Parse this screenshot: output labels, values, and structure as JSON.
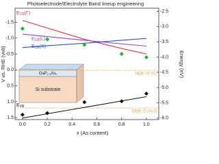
{
  "chart_data": {
    "type": "line",
    "title": "Photoelectrode/Electrolyte Band lineup engineering",
    "xlabel": "x (As content)",
    "ylabel": "V vs. RHE (volt)",
    "y2label": "Energy (eV)",
    "xlim": [
      -0.06,
      1.1
    ],
    "xticks": [
      {
        "value": 0,
        "label": "0.0"
      },
      0.2,
      0.4,
      0.6,
      0.8,
      {
        "value": 1,
        "label": "1.0"
      }
    ],
    "ylim": [
      1.56,
      -1.94
    ],
    "yticks": [
      -1.5,
      {
        "value": -1,
        "label": "-1.0"
      },
      -0.5,
      {
        "value": 0,
        "label": "0.0"
      },
      0.5,
      {
        "value": 1,
        "label": "1.0"
      },
      1.5
    ],
    "y2lim": [
      -6.05,
      -2.4
    ],
    "y2ticks": [
      -2.5,
      {
        "value": -3,
        "label": "-3.0"
      },
      -3.5,
      {
        "value": -4,
        "label": "-4.0"
      },
      -4.5,
      {
        "value": -5,
        "label": "-5.0"
      },
      -5.5,
      {
        "value": -6,
        "label": "-6.0"
      }
    ],
    "series": [
      {
        "kind": "line",
        "axis": "y2",
        "color": "#e0303a",
        "x": [
          0,
          0.2,
          0.5,
          0.8,
          1.0
        ],
        "values": [
          -2.8,
          -3.05,
          -3.42,
          -3.72,
          -3.9
        ]
      },
      {
        "kind": "line",
        "axis": "y2",
        "color": "#9b3fc9",
        "x": [
          0,
          0.2,
          0.5,
          0.8,
          1.0
        ],
        "values": [
          -3.25,
          -3.33,
          -3.45,
          -3.57,
          -3.64
        ]
      },
      {
        "kind": "line",
        "axis": "y2",
        "color": "#2a4fd6",
        "x": [
          0,
          0.2,
          0.5,
          0.8,
          1.0
        ],
        "values": [
          -3.69,
          -3.63,
          -3.55,
          -3.45,
          -3.39
        ]
      },
      {
        "kind": "line",
        "axis": "y2",
        "color": "#111111",
        "x": [
          0,
          0.2,
          0.5,
          0.8,
          1.0
        ],
        "values": [
          -6.0,
          -5.86,
          -5.65,
          -5.44,
          -5.3
        ]
      },
      {
        "kind": "scatter",
        "axis": "y2",
        "color": "#22b030",
        "x": [
          0,
          0.2,
          0.5,
          0.8,
          1.0
        ],
        "values": [
          -3.07,
          -3.42,
          -3.6,
          -3.9,
          -4.01
        ]
      },
      {
        "kind": "scatter",
        "axis": "y2",
        "color": "#111111",
        "x": [
          0,
          0.2,
          0.5,
          0.8,
          1.0
        ],
        "values": [
          -5.89,
          -5.84,
          -5.48,
          -5.45,
          -5.2
        ]
      }
    ],
    "annotations": [
      {
        "text": "E",
        "sub": "CB",
        "rest": "(Γ)",
        "color": "#e0303a"
      },
      {
        "text": "E",
        "sub": "CB",
        "rest": "(L)",
        "color": "#9b3fc9"
      },
      {
        "text": "E",
        "sub": "CB",
        "rest": "(X)",
        "color": "#2a4fd6"
      },
      {
        "text": "E",
        "sub": "VB",
        "rest": "",
        "color": "#111111"
      }
    ],
    "ref_lines": [
      {
        "value": -4.44,
        "label": "HER: H⁺/H₂",
        "color": "#f0a030"
      },
      {
        "value": -5.67,
        "label": "OER: O₂/H₂O",
        "color": "#f0a030"
      }
    ],
    "inset": {
      "layer": "GaP",
      "layer_sub1": "1-x",
      "layer_mid": "As",
      "layer_sub2": "x",
      "substrate": "Si substrate"
    }
  }
}
